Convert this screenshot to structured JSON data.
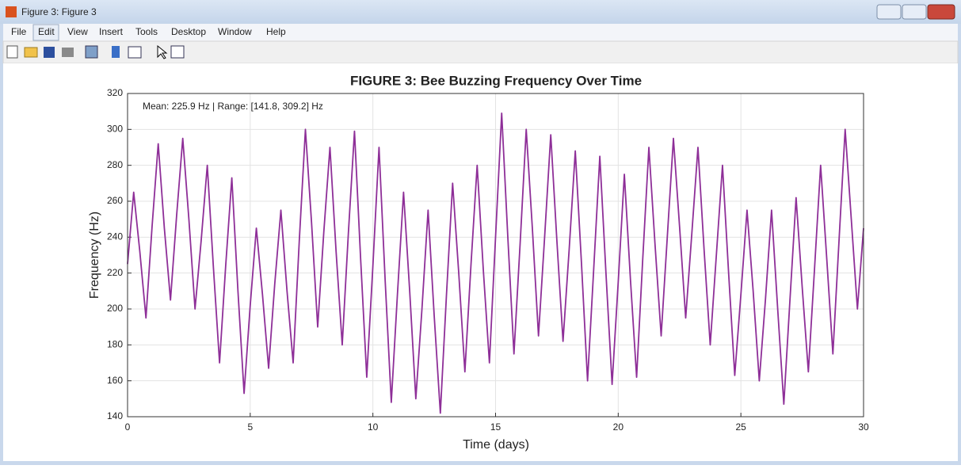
{
  "window": {
    "title": "Figure 3: Figure 3"
  },
  "menu": [
    "File",
    "Edit",
    "View",
    "Insert",
    "Tools",
    "Desktop",
    "Window",
    "Help"
  ],
  "chart_data": {
    "type": "line",
    "title": "FIGURE 3: Bee Buzzing Frequency Over Time",
    "annotation": "Mean: 225.9 Hz | Range: [141.8, 309.2] Hz",
    "xlabel": "Time (days)",
    "ylabel": "Frequency (Hz)",
    "xlim": [
      0,
      30
    ],
    "xticks": [
      0,
      5,
      10,
      15,
      20,
      25,
      30
    ],
    "ylim": [
      140,
      320
    ],
    "yticks": [
      140,
      160,
      180,
      200,
      220,
      240,
      260,
      280,
      300,
      320
    ],
    "grid": true,
    "color": "#8e2f98",
    "x": [
      0,
      0.25,
      0.5,
      0.75,
      1,
      1.25,
      1.5,
      1.75,
      2,
      2.25,
      2.5,
      2.75,
      3,
      3.25,
      3.5,
      3.75,
      4,
      4.25,
      4.5,
      4.75,
      5,
      5.25,
      5.5,
      5.75,
      6,
      6.25,
      6.5,
      6.75,
      7,
      7.25,
      7.5,
      7.75,
      8,
      8.25,
      8.5,
      8.75,
      9,
      9.25,
      9.5,
      9.75,
      10,
      10.25,
      10.5,
      10.75,
      11,
      11.25,
      11.5,
      11.75,
      12,
      12.25,
      12.5,
      12.75,
      13,
      13.25,
      13.5,
      13.75,
      14,
      14.25,
      14.5,
      14.75,
      15,
      15.25,
      15.5,
      15.75,
      16,
      16.25,
      16.5,
      16.75,
      17,
      17.25,
      17.5,
      17.75,
      18,
      18.25,
      18.5,
      18.75,
      19,
      19.25,
      19.5,
      19.75,
      20,
      20.25,
      20.5,
      20.75,
      21,
      21.25,
      21.5,
      21.75,
      22,
      22.25,
      22.5,
      22.75,
      23,
      23.25,
      23.5,
      23.75,
      24,
      24.25,
      24.5,
      24.75,
      25,
      25.25,
      25.5,
      25.75,
      26,
      26.25,
      26.5,
      26.75,
      27,
      27.25,
      27.5,
      27.75,
      28,
      28.25,
      28.5,
      28.75,
      29,
      29.25,
      29.5,
      29.75,
      30
    ],
    "values": [
      225,
      265,
      232,
      195,
      246,
      292,
      245,
      205,
      252,
      295,
      250,
      200,
      238,
      280,
      223,
      170,
      224,
      273,
      210,
      153,
      202,
      245,
      208,
      167,
      214,
      255,
      210,
      170,
      238,
      300,
      248,
      190,
      243,
      290,
      232,
      180,
      242,
      299,
      228,
      162,
      224,
      290,
      216,
      148,
      208,
      265,
      210,
      150,
      200,
      255,
      196,
      142,
      208,
      270,
      220,
      165,
      225,
      280,
      222,
      170,
      240,
      309,
      240,
      175,
      236,
      300,
      245,
      185,
      240,
      297,
      238,
      182,
      233,
      288,
      226,
      160,
      222,
      285,
      220,
      158,
      215,
      275,
      216,
      162,
      228,
      290,
      236,
      185,
      240,
      295,
      246,
      195,
      242,
      290,
      233,
      180,
      230,
      280,
      220,
      163,
      208,
      255,
      210,
      160,
      205,
      255,
      200,
      147,
      205,
      262,
      212,
      165,
      222,
      280,
      228,
      175,
      238,
      300,
      250,
      200,
      245
    ]
  }
}
